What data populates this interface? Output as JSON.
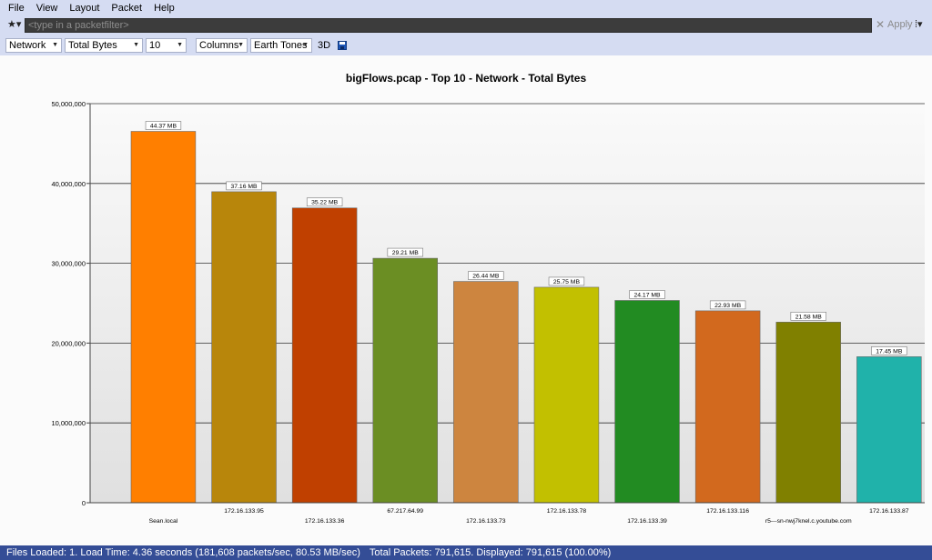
{
  "menu": [
    "File",
    "View",
    "Layout",
    "Packet",
    "Help"
  ],
  "filter": {
    "star_label": "★▾",
    "placeholder": "<type in a packetfilter>",
    "clear_label": "✕",
    "apply_label": "Apply",
    "apply_menu_label": "⁞▾"
  },
  "toolbar": {
    "layer": "Network",
    "metric": "Total Bytes",
    "top_n": "10",
    "chart_style": "Columns",
    "palette": "Earth Tones",
    "three_d_label": "3D"
  },
  "chart_data": {
    "type": "bar",
    "title": "bigFlows.pcap - Top 10 - Network - Total Bytes",
    "categories": [
      "Sean.local",
      "172.16.133.95",
      "172.16.133.36",
      "67.217.64.99",
      "172.16.133.73",
      "172.16.133.78",
      "172.16.133.39",
      "172.16.133.116",
      "r5---sn-nwj7knel.c.youtube.com",
      "172.16.133.87"
    ],
    "values": [
      46525000,
      38965000,
      36931000,
      30629000,
      27724000,
      27000000,
      25344000,
      24044000,
      22628000,
      18297000
    ],
    "data_labels": [
      "44.37 MB",
      "37.16 MB",
      "35.22 MB",
      "29.21 MB",
      "26.44 MB",
      "25.75 MB",
      "24.17 MB",
      "22.93 MB",
      "21.58 MB",
      "17.45 MB"
    ],
    "colors": [
      "#ff7f00",
      "#b8860b",
      "#c04000",
      "#6b8e23",
      "#cd853f",
      "#c2c000",
      "#228b22",
      "#d2691e",
      "#808000",
      "#20b2aa"
    ],
    "ylim": [
      0,
      50000000
    ],
    "yticks": [
      0,
      10000000,
      20000000,
      30000000,
      40000000,
      50000000
    ],
    "ytick_labels": [
      "0",
      "10,000,000",
      "20,000,000",
      "30,000,000",
      "40,000,000",
      "50,000,000"
    ],
    "grid": true,
    "xlabel": "",
    "ylabel": ""
  },
  "status": {
    "files_loaded": "Files Loaded: 1. Load Time: 4.36 seconds (181,608 packets/sec, 80.53 MB/sec)",
    "packets": "Total Packets: 791,615. Displayed: 791,615 (100.00%)"
  }
}
